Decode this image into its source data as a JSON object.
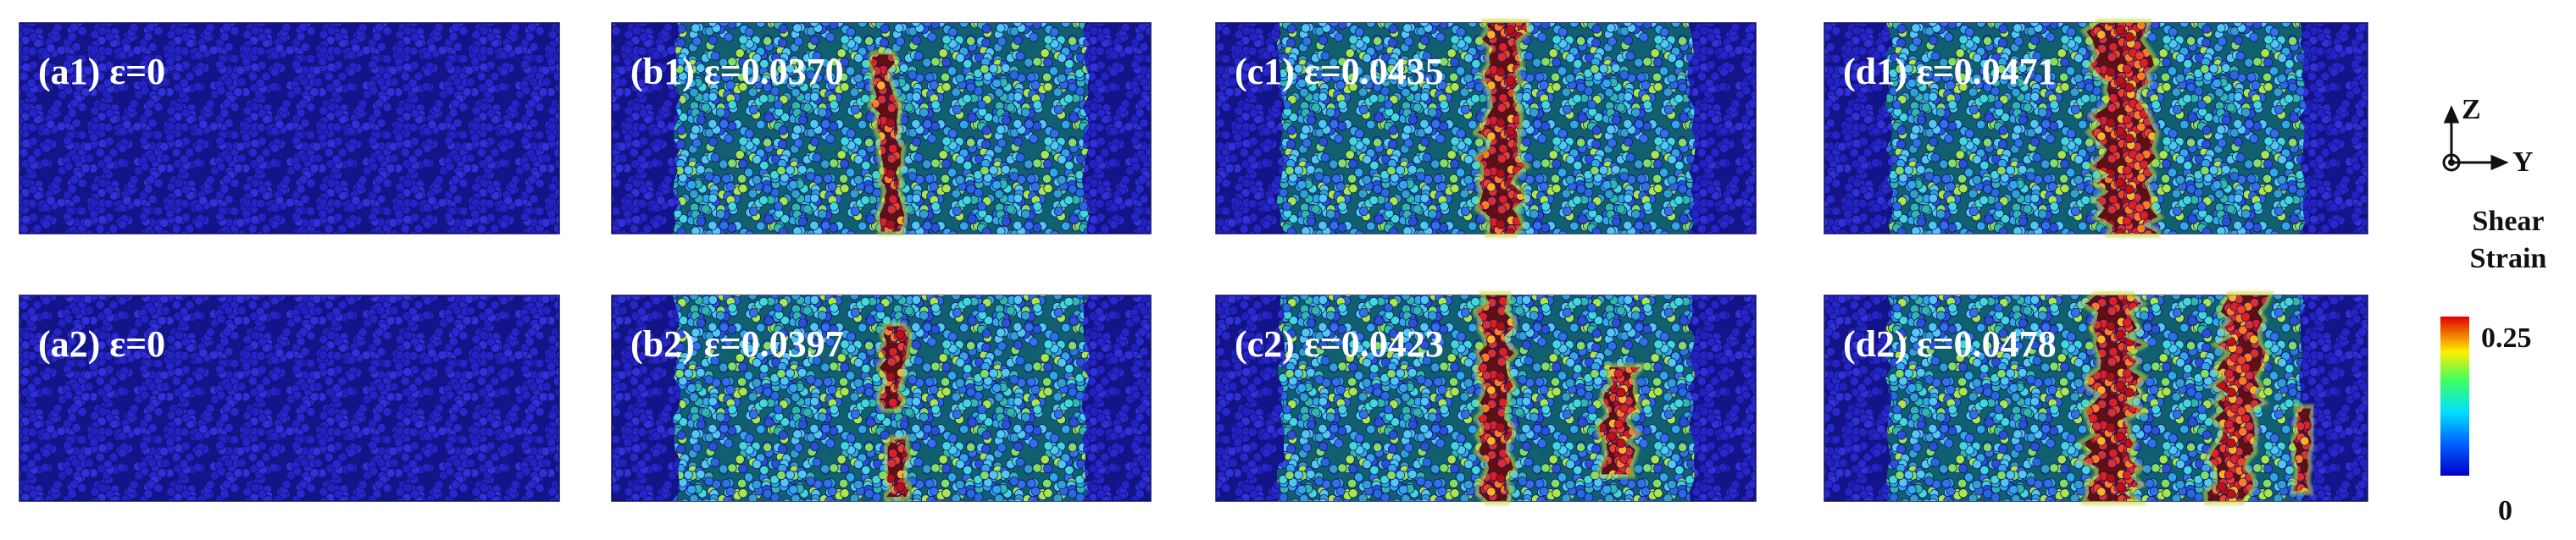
{
  "panels": [
    {
      "label": "(a1) ε=0"
    },
    {
      "label": "(b1) ε=0.0370"
    },
    {
      "label": "(c1) ε=0.0435"
    },
    {
      "label": "(d1) ε=0.0471"
    },
    {
      "label": "(a2) ε=0"
    },
    {
      "label": "(b2) ε=0.0397"
    },
    {
      "label": "(c2) ε=0.0423"
    },
    {
      "label": "(d2) ε=0.0478"
    }
  ],
  "axes": {
    "vertical": "Z",
    "horizontal": "Y"
  },
  "colorbar": {
    "title_lines": [
      "Shear",
      "Strain"
    ],
    "max_label": "0.25",
    "min_label": "0"
  }
}
